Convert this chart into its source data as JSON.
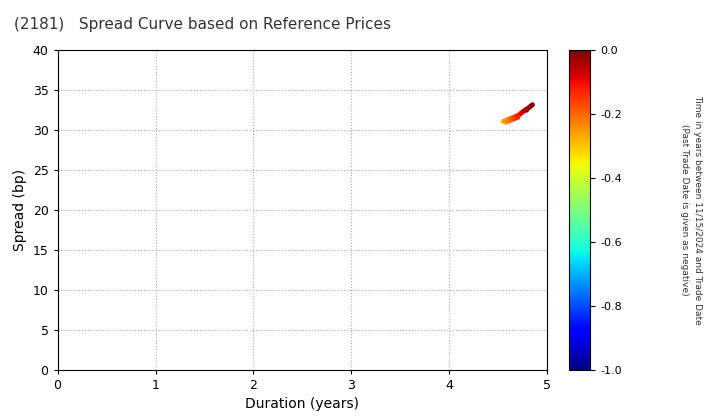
{
  "title": "(2181)   Spread Curve based on Reference Prices",
  "xlabel": "Duration (years)",
  "ylabel": "Spread (bp)",
  "xlim": [
    0,
    5
  ],
  "ylim": [
    0,
    40
  ],
  "xticks": [
    0,
    1,
    2,
    3,
    4,
    5
  ],
  "yticks": [
    0,
    5,
    10,
    15,
    20,
    25,
    30,
    35,
    40
  ],
  "colorbar_label_line1": "Time in years between 11/15/2024 and Trade Date",
  "colorbar_label_line2": "(Past Trade Date is given as negative)",
  "colorbar_vmin": -1.0,
  "colorbar_vmax": 0.0,
  "colorbar_ticks": [
    0.0,
    -0.2,
    -0.4,
    -0.6,
    -0.8,
    -1.0
  ],
  "scatter_duration": [
    4.55,
    4.57,
    4.58,
    4.59,
    4.6,
    4.61,
    4.62,
    4.63,
    4.64,
    4.65,
    4.66,
    4.67,
    4.68,
    4.69,
    4.7,
    4.71,
    4.72,
    4.73,
    4.74,
    4.75,
    4.76,
    4.77,
    4.78,
    4.79,
    4.8,
    4.81,
    4.82,
    4.83,
    4.84,
    4.85
  ],
  "scatter_spread": [
    31.1,
    31.2,
    31.0,
    31.3,
    31.1,
    31.4,
    31.2,
    31.5,
    31.3,
    31.6,
    31.4,
    31.7,
    31.5,
    31.8,
    31.6,
    31.9,
    32.0,
    32.1,
    32.2,
    32.3,
    32.4,
    32.5,
    32.6,
    32.5,
    32.7,
    32.8,
    32.9,
    33.0,
    33.1,
    33.2
  ],
  "scatter_time": [
    -0.28,
    -0.26,
    -0.25,
    -0.24,
    -0.23,
    -0.22,
    -0.21,
    -0.2,
    -0.19,
    -0.18,
    -0.17,
    -0.16,
    -0.15,
    -0.14,
    -0.13,
    -0.12,
    -0.11,
    -0.1,
    -0.09,
    -0.08,
    -0.07,
    -0.06,
    -0.05,
    -0.04,
    -0.03,
    -0.02,
    -0.02,
    -0.01,
    -0.01,
    0.0
  ],
  "background_color": "#ffffff",
  "grid_color": "#aaaaaa",
  "point_size": 12
}
